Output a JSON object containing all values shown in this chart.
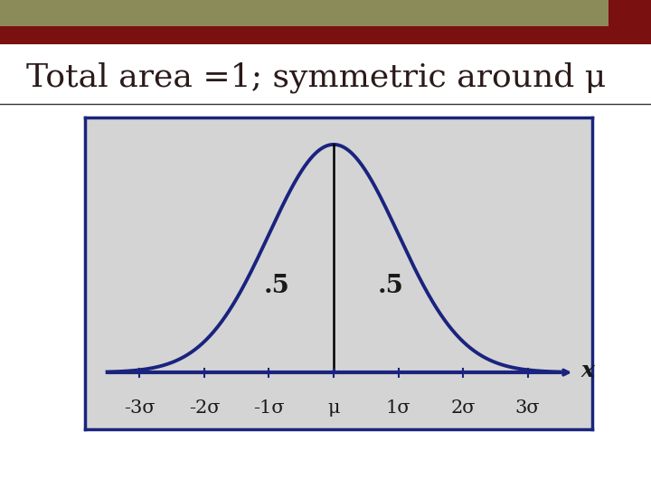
{
  "title": "Total area =1; symmetric around μ",
  "title_color": "#2B1A1A",
  "title_fontsize": 26,
  "bg_color": "#ffffff",
  "plot_bg_color": "#D4D4D4",
  "curve_color": "#1A237E",
  "curve_linewidth": 2.8,
  "vline_color": "#000000",
  "axis_color": "#1A237E",
  "label_left": ".5",
  "label_right": ".5",
  "label_fontsize": 20,
  "label_color": "#1A1A1A",
  "tick_labels": [
    "-3σ",
    "-2σ",
    "-1σ",
    "μ",
    "1σ",
    "2σ",
    "3σ"
  ],
  "tick_positions": [
    -3,
    -2,
    -1,
    0,
    1,
    2,
    3
  ],
  "x_label": "x",
  "x_label_fontsize": 18,
  "tick_fontsize": 15,
  "header_bar1_color": "#8B8B5A",
  "header_bar2_color": "#7B1010",
  "header_sq_color": "#7B1010",
  "border_color": "#1A237E",
  "hline_color": "#000000"
}
